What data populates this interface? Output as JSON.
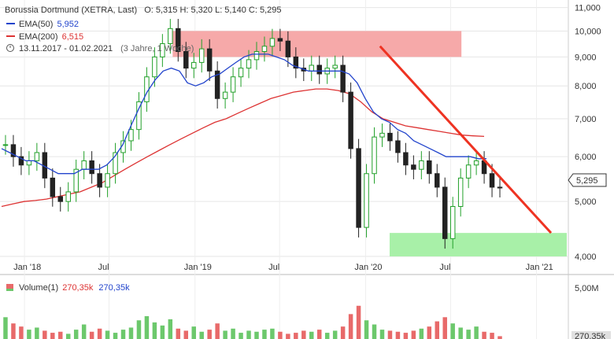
{
  "legend": {
    "title": "Borussia Dortmund (XETRA, Last)",
    "ohlc": "O: 5,315  H: 5,320  L: 5,140  C: 5,295",
    "ema50_label": "EMA(50)",
    "ema50_value": "5,952",
    "ema200_label": "EMA(200)",
    "ema200_value": "6,515",
    "range": "13.11.2017 - 01.02.2021",
    "period": "(3 Jahre, 1 Woche)"
  },
  "volume": {
    "label": "Volume(1)",
    "value_red": "270,35k",
    "value_green": "270,35k",
    "axis_top": "5,00M",
    "last_tag": "270,35k"
  },
  "price_tag": "5,295",
  "chart_data": {
    "type": "candlestick",
    "yscale": "log",
    "ylim": [
      3.8,
      11.2
    ],
    "yticks": [
      "4,000",
      "5,000",
      "6,000",
      "7,000",
      "8,000",
      "9,000",
      "10,000",
      "11,000"
    ],
    "ytick_values": [
      4,
      5,
      6,
      7,
      8,
      9,
      10,
      11
    ],
    "xlabels": [
      "Jan '18",
      "Jul",
      "Jan '19",
      "Jul",
      "Jan '20",
      "Jul",
      "Jan '21"
    ],
    "xlabel_dates": [
      "2018-01",
      "2018-07",
      "2019-01",
      "2019-07",
      "2020-01",
      "2020-07",
      "2021-01"
    ],
    "close": [
      6.3,
      6.0,
      5.8,
      5.9,
      6.1,
      5.5,
      5.1,
      5.0,
      5.2,
      5.7,
      5.9,
      5.6,
      5.3,
      5.6,
      6.1,
      6.4,
      6.7,
      7.5,
      8.3,
      9.0,
      9.5,
      10.1,
      9.2,
      8.6,
      8.8,
      9.3,
      8.5,
      7.6,
      7.8,
      8.3,
      8.6,
      8.9,
      9.2,
      9.4,
      9.7,
      9.6,
      9.0,
      8.6,
      8.5,
      8.7,
      8.4,
      8.6,
      8.7,
      7.8,
      6.2,
      4.5,
      5.6,
      6.5,
      6.6,
      6.4,
      6.1,
      5.8,
      5.7,
      5.9,
      5.6,
      5.3,
      4.3,
      4.9,
      5.5,
      5.8,
      5.9,
      5.6,
      5.3,
      5.295
    ],
    "ema50": [
      6.2,
      6.1,
      6.0,
      5.9,
      5.9,
      5.8,
      5.7,
      5.6,
      5.6,
      5.6,
      5.7,
      5.7,
      5.7,
      5.8,
      6.0,
      6.3,
      6.8,
      7.3,
      7.8,
      8.2,
      8.5,
      8.6,
      8.5,
      8.1,
      8.0,
      8.1,
      8.3,
      8.4,
      8.6,
      8.8,
      9.0,
      9.1,
      9.1,
      9.1,
      9.0,
      8.9,
      8.7,
      8.6,
      8.5,
      8.5,
      8.5,
      8.5,
      8.5,
      8.4,
      8.1,
      7.6,
      7.2,
      7.0,
      6.9,
      6.7,
      6.6,
      6.4,
      6.3,
      6.2,
      6.1,
      6.0,
      6.0,
      6.0,
      6.0,
      5.95,
      5.952
    ],
    "ema200": [
      4.9,
      4.95,
      5.0,
      5.02,
      5.05,
      5.1,
      5.15,
      5.2,
      5.3,
      5.4,
      5.55,
      5.7,
      5.85,
      6.0,
      6.15,
      6.3,
      6.45,
      6.6,
      6.75,
      6.9,
      7.0,
      7.15,
      7.3,
      7.45,
      7.6,
      7.7,
      7.8,
      7.85,
      7.9,
      7.9,
      7.85,
      7.75,
      7.5,
      7.2,
      7.0,
      6.9,
      6.8,
      6.75,
      6.7,
      6.65,
      6.6,
      6.55,
      6.53,
      6.515
    ],
    "ema50_name": "EMA(50)",
    "ema200_name": "EMA(200)",
    "resistance_zone": [
      9.0,
      10.0
    ],
    "support_zone": [
      4.0,
      4.4
    ],
    "trendline": {
      "from": {
        "date": "2020-02",
        "price": 9.4
      },
      "to": {
        "date": "2021-02",
        "price": 4.4
      }
    },
    "colors": {
      "up": "#22a02a",
      "down": "#222222",
      "ema50": "#2244cc",
      "ema200": "#dd3333",
      "trendline": "#ee3322",
      "resistance": "#f6a9a9",
      "support": "#a8f0a8",
      "vol_down": "#e86a6a",
      "vol_up": "#6cc86c"
    },
    "volume": [
      2.1,
      1.5,
      1.2,
      0.9,
      1.1,
      0.8,
      0.6,
      0.7,
      0.5,
      0.9,
      1.4,
      0.7,
      1.0,
      0.8,
      0.6,
      0.9,
      1.1,
      1.8,
      2.2,
      1.6,
      1.3,
      1.9,
      1.0,
      0.8,
      1.2,
      0.7,
      0.9,
      1.5,
      0.8,
      1.0,
      0.6,
      0.8,
      0.7,
      0.9,
      1.0,
      0.7,
      0.5,
      0.6,
      0.8,
      0.7,
      0.9,
      0.6,
      0.8,
      1.2,
      2.4,
      3.2,
      1.8,
      1.4,
      0.9,
      0.8,
      0.7,
      0.6,
      0.8,
      1.0,
      1.2,
      1.7,
      2.1,
      1.5,
      1.1,
      0.9,
      1.2,
      0.7,
      0.6,
      0.27035
    ]
  }
}
